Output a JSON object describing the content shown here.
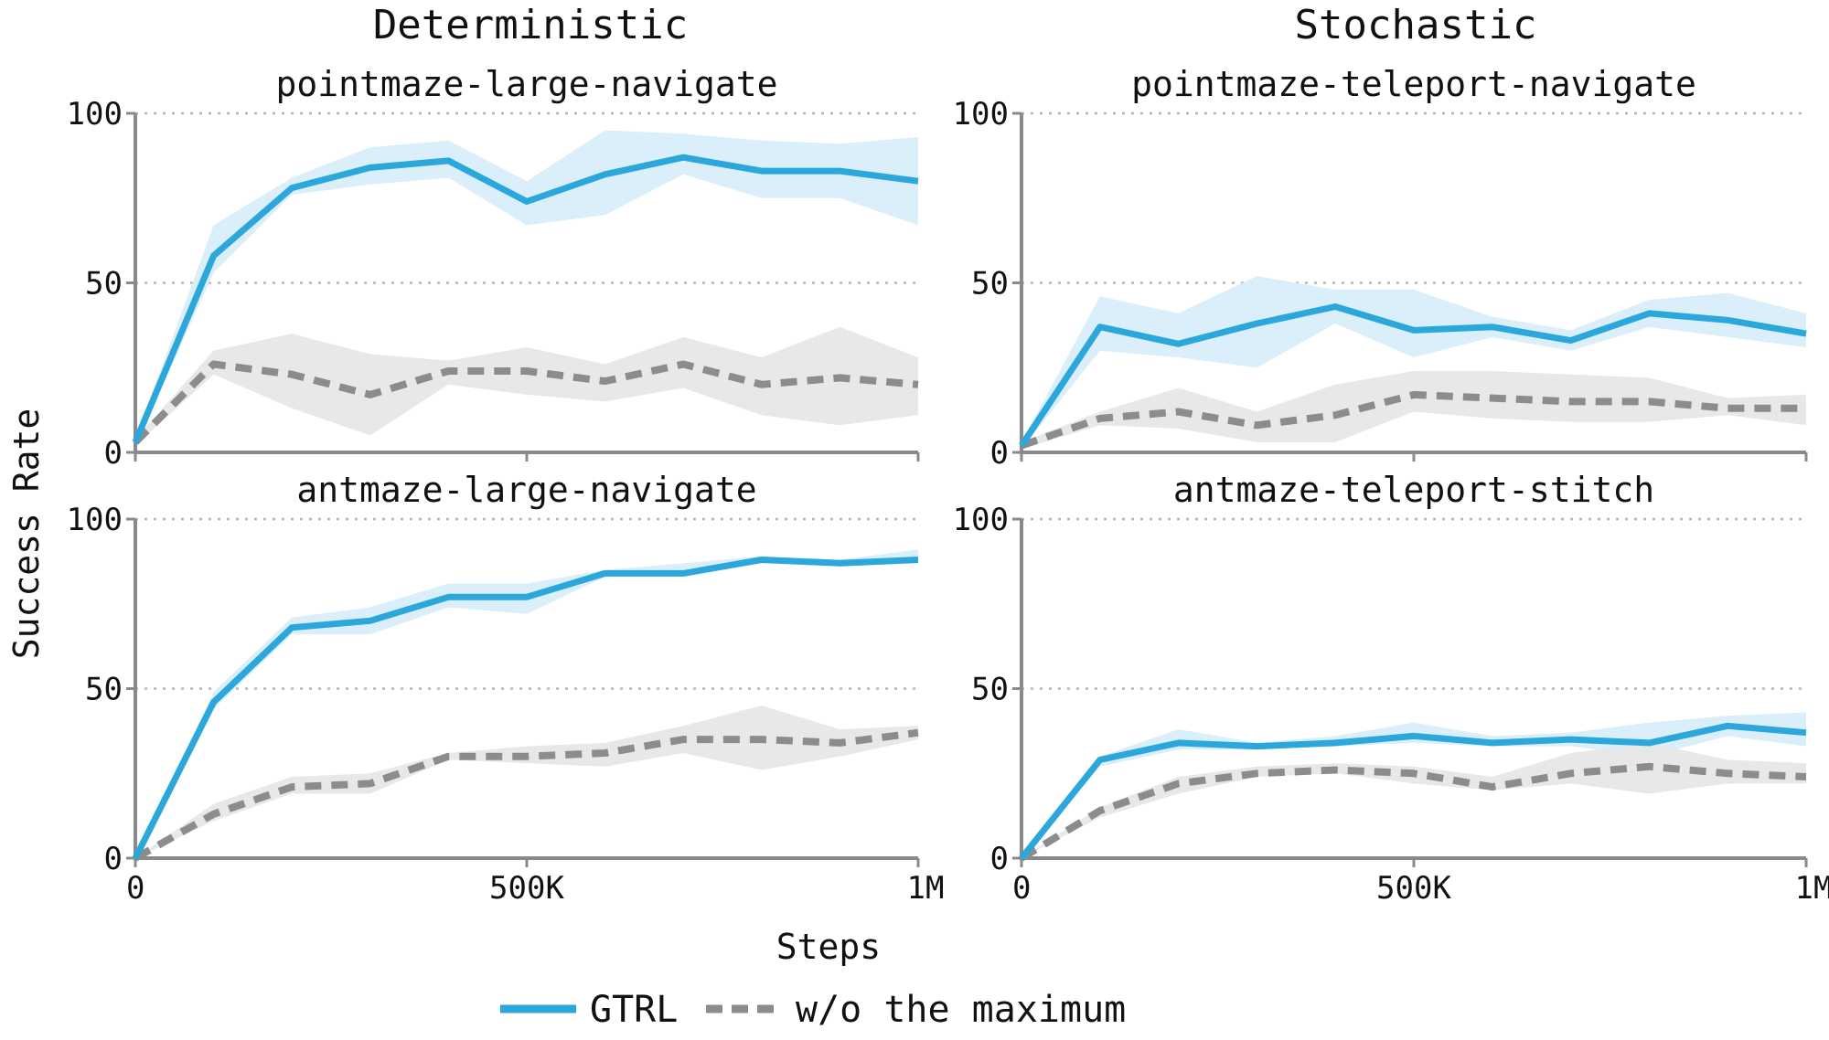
{
  "figure": {
    "column_titles": [
      "Deterministic",
      "Stochastic"
    ],
    "xlabel": "Steps",
    "ylabel": "Success Rate",
    "colors": {
      "gtrl": "#2ba7db",
      "gtrl_band": "#d8eef9",
      "ablation": "#8c8c8c",
      "ablation_band": "#e6e6e6"
    },
    "legend": [
      {
        "label": "GTRL",
        "style": "solid"
      },
      {
        "label": "w/o the maximum",
        "style": "dashed"
      }
    ]
  },
  "chart_data": [
    {
      "type": "line",
      "title": "pointmaze-large-navigate",
      "x": [
        0,
        100000,
        200000,
        300000,
        400000,
        500000,
        600000,
        700000,
        800000,
        900000,
        1000000
      ],
      "xticks": [
        "0",
        "500K",
        "1M"
      ],
      "yticks": [
        "0",
        "50",
        "100"
      ],
      "xlim": [
        0,
        1000000
      ],
      "ylim": [
        0,
        100
      ],
      "grid": "horizontal dotted",
      "series": [
        {
          "name": "GTRL",
          "values": [
            3,
            58,
            78,
            84,
            86,
            74,
            82,
            87,
            83,
            83,
            80
          ],
          "lower": [
            2,
            53,
            76,
            79,
            81,
            67,
            70,
            82,
            75,
            75,
            67
          ],
          "upper": [
            4,
            67,
            81,
            90,
            92,
            80,
            95,
            94,
            92,
            91,
            93
          ]
        },
        {
          "name": "w/o the maximum",
          "values": [
            3,
            26,
            23,
            17,
            24,
            24,
            21,
            26,
            20,
            22,
            20
          ],
          "lower": [
            2,
            23,
            13,
            5,
            20,
            17,
            15,
            19,
            11,
            8,
            11
          ],
          "upper": [
            4,
            30,
            35,
            29,
            27,
            31,
            26,
            34,
            28,
            37,
            28
          ]
        }
      ]
    },
    {
      "type": "line",
      "title": "pointmaze-teleport-navigate",
      "x": [
        0,
        100000,
        200000,
        300000,
        400000,
        500000,
        600000,
        700000,
        800000,
        900000,
        1000000
      ],
      "xticks": [
        "0",
        "500K",
        "1M"
      ],
      "yticks": [
        "0",
        "50",
        "100"
      ],
      "xlim": [
        0,
        1000000
      ],
      "ylim": [
        0,
        100
      ],
      "grid": "horizontal dotted",
      "series": [
        {
          "name": "GTRL",
          "values": [
            2,
            37,
            32,
            38,
            43,
            36,
            37,
            33,
            41,
            39,
            35
          ],
          "lower": [
            1,
            30,
            28,
            25,
            38,
            28,
            34,
            30,
            37,
            34,
            31
          ],
          "upper": [
            3,
            46,
            41,
            52,
            48,
            48,
            40,
            36,
            45,
            47,
            41
          ]
        },
        {
          "name": "w/o the maximum",
          "values": [
            2,
            10,
            12,
            8,
            11,
            17,
            16,
            15,
            15,
            13,
            13
          ],
          "lower": [
            1,
            8,
            7,
            3,
            3,
            12,
            10,
            9,
            9,
            11,
            8
          ],
          "upper": [
            3,
            12,
            19,
            12,
            20,
            24,
            24,
            23,
            22,
            16,
            17
          ]
        }
      ]
    },
    {
      "type": "line",
      "title": "antmaze-large-navigate",
      "x": [
        0,
        100000,
        200000,
        300000,
        400000,
        500000,
        600000,
        700000,
        800000,
        900000,
        1000000
      ],
      "xticks": [
        "0",
        "500K",
        "1M"
      ],
      "yticks": [
        "0",
        "50",
        "100"
      ],
      "xlim": [
        0,
        1000000
      ],
      "ylim": [
        0,
        100
      ],
      "grid": "horizontal dotted",
      "series": [
        {
          "name": "GTRL",
          "values": [
            0,
            46,
            68,
            70,
            77,
            77,
            84,
            84,
            88,
            87,
            88
          ],
          "lower": [
            0,
            44,
            66,
            66,
            74,
            72,
            83,
            83,
            87,
            86,
            87
          ],
          "upper": [
            0,
            49,
            71,
            74,
            81,
            81,
            85,
            87,
            89,
            88,
            91
          ]
        },
        {
          "name": "w/o the maximum",
          "values": [
            0,
            13,
            21,
            22,
            30,
            30,
            31,
            35,
            35,
            34,
            37
          ],
          "lower": [
            0,
            11,
            19,
            19,
            29,
            28,
            27,
            31,
            26,
            30,
            35
          ],
          "upper": [
            0,
            16,
            24,
            25,
            31,
            33,
            34,
            39,
            45,
            38,
            39
          ]
        }
      ]
    },
    {
      "type": "line",
      "title": "antmaze-teleport-stitch",
      "x": [
        0,
        100000,
        200000,
        300000,
        400000,
        500000,
        600000,
        700000,
        800000,
        900000,
        1000000
      ],
      "xticks": [
        "0",
        "500K",
        "1M"
      ],
      "yticks": [
        "0",
        "50",
        "100"
      ],
      "xlim": [
        0,
        1000000
      ],
      "ylim": [
        0,
        100
      ],
      "grid": "horizontal dotted",
      "series": [
        {
          "name": "GTRL",
          "values": [
            0,
            29,
            34,
            33,
            34,
            36,
            34,
            35,
            34,
            39,
            37
          ],
          "lower": [
            0,
            27,
            32,
            32,
            33,
            34,
            33,
            33,
            30,
            36,
            33
          ],
          "upper": [
            0,
            30,
            38,
            34,
            36,
            40,
            36,
            37,
            40,
            42,
            43
          ]
        },
        {
          "name": "w/o the maximum",
          "values": [
            0,
            14,
            22,
            25,
            26,
            25,
            21,
            25,
            27,
            25,
            24
          ],
          "lower": [
            0,
            12,
            19,
            24,
            25,
            22,
            20,
            22,
            19,
            22,
            22
          ],
          "upper": [
            0,
            15,
            24,
            27,
            28,
            27,
            24,
            31,
            34,
            29,
            28
          ]
        }
      ]
    }
  ]
}
